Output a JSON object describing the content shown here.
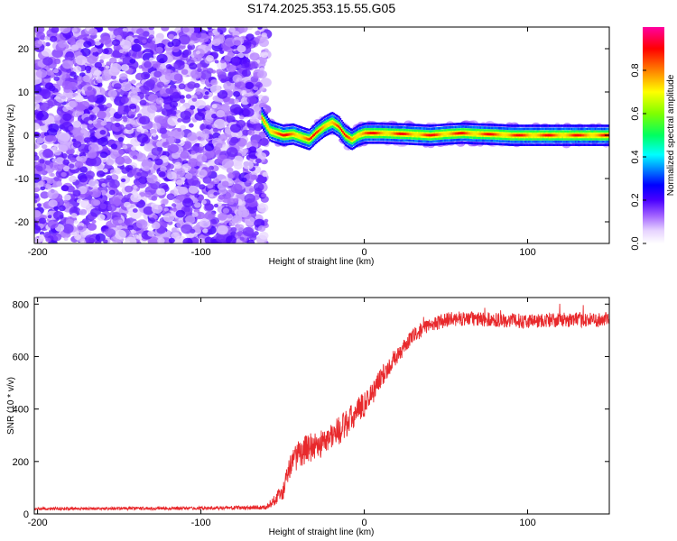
{
  "title": "S174.2025.353.15.55.G05",
  "chart_data": [
    {
      "type": "heatmap",
      "xlabel": "Height of straight line (km)",
      "ylabel": "Frequency (Hz)",
      "xlim": [
        -202,
        150
      ],
      "ylim": [
        -25,
        25
      ],
      "x_ticks": [
        -200,
        -100,
        0,
        100
      ],
      "y_ticks": [
        -20,
        -10,
        0,
        10,
        20
      ],
      "x_tick_labels": [
        "-200",
        "-100",
        "0",
        "100"
      ],
      "y_tick_labels": [
        "-20",
        "-10",
        "0",
        "10",
        "20"
      ],
      "noise_region_x": [
        -202,
        -60
      ],
      "noise_amplitude": 0.15,
      "ridge": {
        "x": [
          -63,
          -58,
          -50,
          -44,
          -38,
          -34,
          -30,
          -25,
          -20,
          -16,
          -12,
          -8,
          -4,
          0,
          10,
          25,
          40,
          50,
          60,
          70,
          80,
          90,
          100,
          110,
          120,
          150
        ],
        "frequency": [
          4,
          1,
          0,
          0.3,
          -0.5,
          -1,
          0.5,
          2,
          3,
          2,
          0,
          -1,
          0,
          0.5,
          0.5,
          0.3,
          0,
          0.3,
          0.5,
          0.3,
          0.2,
          0,
          0,
          0,
          0,
          0
        ],
        "peak_amplitude": 0.9
      },
      "colorbar": {
        "label": "Normalized spectral amplitude",
        "range": [
          0,
          1
        ],
        "ticks": [
          0.0,
          0.2,
          0.4,
          0.6,
          0.8
        ],
        "tick_labels": [
          "0.0",
          "0.2",
          "0.4",
          "0.6",
          "0.8"
        ]
      }
    },
    {
      "type": "line",
      "xlabel": "Height of straight line (km)",
      "ylabel": "SNR (10 * v/v)",
      "xlim": [
        -202,
        150
      ],
      "ylim": [
        0,
        825
      ],
      "x_ticks": [
        -200,
        -100,
        0,
        100
      ],
      "y_ticks": [
        0,
        200,
        400,
        600,
        800
      ],
      "x_tick_labels": [
        "-200",
        "-100",
        "0",
        "100"
      ],
      "y_tick_labels": [
        "0",
        "200",
        "400",
        "600",
        "800"
      ],
      "series": [
        {
          "name": "SNR",
          "color": "#e8292c",
          "x": [
            -202,
            -100,
            -60,
            -50,
            -45,
            -40,
            -35,
            -30,
            -25,
            -20,
            -15,
            -10,
            -5,
            0,
            5,
            10,
            15,
            20,
            25,
            30,
            35,
            40,
            50,
            60,
            80,
            100,
            120,
            150
          ],
          "y": [
            20,
            22,
            25,
            80,
            190,
            230,
            250,
            260,
            270,
            300,
            320,
            350,
            380,
            420,
            460,
            520,
            560,
            600,
            640,
            680,
            700,
            720,
            740,
            745,
            740,
            735,
            740,
            740
          ],
          "noise": [
            6,
            6,
            8,
            35,
            45,
            55,
            55,
            55,
            55,
            55,
            55,
            55,
            55,
            50,
            45,
            40,
            35,
            30,
            30,
            28,
            28,
            28,
            28,
            28,
            28,
            28,
            28,
            28
          ]
        }
      ]
    }
  ]
}
